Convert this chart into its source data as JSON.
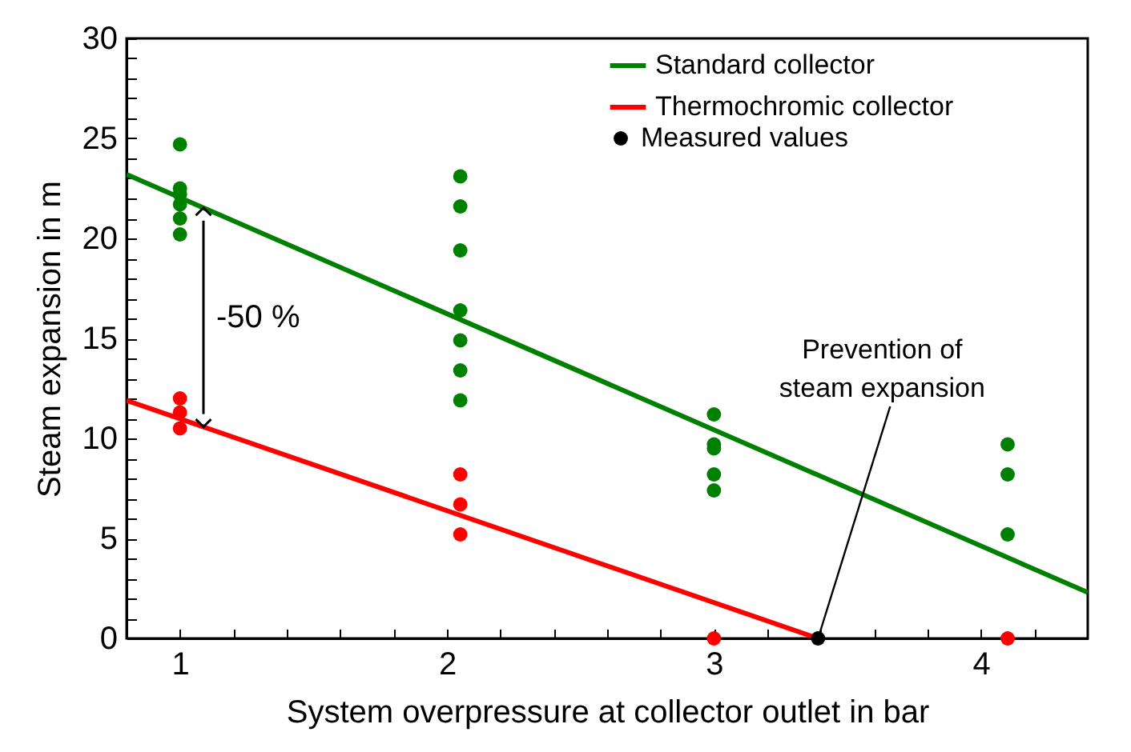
{
  "chart_data": {
    "type": "scatter",
    "xlabel": "System overpressure at collector outlet in bar",
    "ylabel": "Steam expansion in m",
    "xlim": [
      0.8,
      4.4
    ],
    "xticks": [
      1,
      {
        "value": 1.2,
        "label": null
      },
      {
        "value": 1.4,
        "label": null
      },
      {
        "value": 1.6,
        "label": null
      },
      {
        "value": 1.8,
        "label": null
      },
      2,
      {
        "value": 2.2,
        "label": null
      },
      {
        "value": 2.4,
        "label": null
      },
      {
        "value": 2.6,
        "label": null
      },
      {
        "value": 2.8,
        "label": null
      },
      3,
      {
        "value": 3.2,
        "label": null
      },
      {
        "value": 3.4,
        "label": null
      },
      {
        "value": 3.6,
        "label": null
      },
      {
        "value": 3.8,
        "label": null
      },
      4,
      {
        "value": 4.2,
        "label": null
      }
    ],
    "ylim": [
      0,
      30
    ],
    "yticks": [
      0,
      {
        "value": 1,
        "label": null
      },
      {
        "value": 2,
        "label": null
      },
      {
        "value": 3,
        "label": null
      },
      {
        "value": 4,
        "label": null
      },
      5,
      {
        "value": 6,
        "label": null
      },
      {
        "value": 7,
        "label": null
      },
      {
        "value": 8,
        "label": null
      },
      {
        "value": 9,
        "label": null
      },
      10,
      {
        "value": 11,
        "label": null
      },
      {
        "value": 12,
        "label": null
      },
      {
        "value": 13,
        "label": null
      },
      {
        "value": 14,
        "label": null
      },
      15,
      {
        "value": 16,
        "label": null
      },
      {
        "value": 17,
        "label": null
      },
      {
        "value": 18,
        "label": null
      },
      {
        "value": 19,
        "label": null
      },
      20,
      {
        "value": 21,
        "label": null
      },
      {
        "value": 22,
        "label": null
      },
      {
        "value": 23,
        "label": null
      },
      {
        "value": 24,
        "label": null
      },
      25,
      {
        "value": 26,
        "label": null
      },
      {
        "value": 27,
        "label": null
      },
      {
        "value": 28,
        "label": null
      },
      {
        "value": 29,
        "label": null
      },
      30
    ],
    "grid": false,
    "legend": "top right",
    "series": [
      {
        "name": "Standard collector",
        "type": "line",
        "marker": "none",
        "color": "#008000",
        "x": [
          0.8,
          4.4
        ],
        "values": [
          23.2,
          2.3
        ]
      },
      {
        "name": "Thermochromic collector",
        "type": "line",
        "marker": "none",
        "color": "#ff0000",
        "x": [
          0.8,
          3.39
        ],
        "values": [
          11.9,
          0
        ]
      },
      {
        "name": "Measured values",
        "type": "scatter",
        "marker": "circle",
        "color": "#000000",
        "x": [
          3.39
        ],
        "values": [
          0
        ]
      },
      {
        "type": "scatter",
        "marker": "circle",
        "color": "#008000",
        "x": [
          1,
          1,
          1,
          1,
          1,
          1,
          2.05,
          2.05,
          2.05,
          2.05,
          2.05,
          2.05,
          2.05,
          3,
          3,
          3,
          3,
          3,
          4.1,
          4.1,
          4.1
        ],
        "values": [
          24.7,
          22.5,
          22.2,
          21.7,
          21.0,
          20.2,
          23.1,
          21.6,
          19.4,
          16.4,
          14.9,
          13.4,
          11.9,
          11.2,
          9.7,
          9.5,
          8.2,
          7.4,
          9.7,
          8.2,
          5.2
        ]
      },
      {
        "type": "scatter",
        "marker": "circle",
        "color": "#ff0000",
        "x": [
          1,
          1,
          1,
          2.05,
          2.05,
          2.05,
          3,
          4.1
        ],
        "values": [
          12.0,
          11.3,
          10.5,
          8.2,
          6.7,
          5.2,
          0,
          0
        ]
      }
    ],
    "annotations": [
      "-50 %",
      {
        "text": "Prevention of\nsteam expansion",
        "x": 3.39,
        "y": 0
      }
    ]
  }
}
